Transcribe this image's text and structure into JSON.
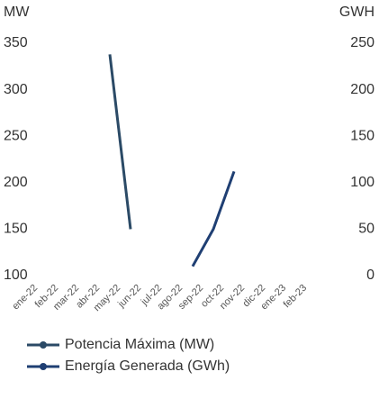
{
  "chart_data": {
    "type": "line",
    "y_label": "MW",
    "y2_label": "GWH",
    "categories": [
      "ene-22",
      "feb-22",
      "mar-22",
      "abr-22",
      "may-22",
      "jun-22",
      "jul-22",
      "ago-22",
      "sep-22",
      "oct-22",
      "nov-22",
      "dic-22",
      "ene-23",
      "feb-23"
    ],
    "series": [
      {
        "name": "Potencia Máxima (MW)",
        "color": "#2b4a66",
        "values": [
          null,
          null,
          null,
          null,
          338,
          150,
          null,
          null,
          null,
          null,
          null,
          null,
          null,
          null
        ]
      },
      {
        "name": "Energía Generada (GWh)",
        "color": "#1f3f73",
        "axis": "y2",
        "values": [
          null,
          null,
          null,
          null,
          null,
          null,
          null,
          null,
          10,
          50,
          112,
          null,
          null,
          null
        ]
      }
    ],
    "ylim": [
      100,
      350
    ],
    "yticks": [
      100,
      150,
      200,
      250,
      300,
      350
    ],
    "y2lim": [
      0,
      250
    ],
    "y2ticks": [
      0,
      50,
      100,
      150,
      200,
      250
    ]
  }
}
